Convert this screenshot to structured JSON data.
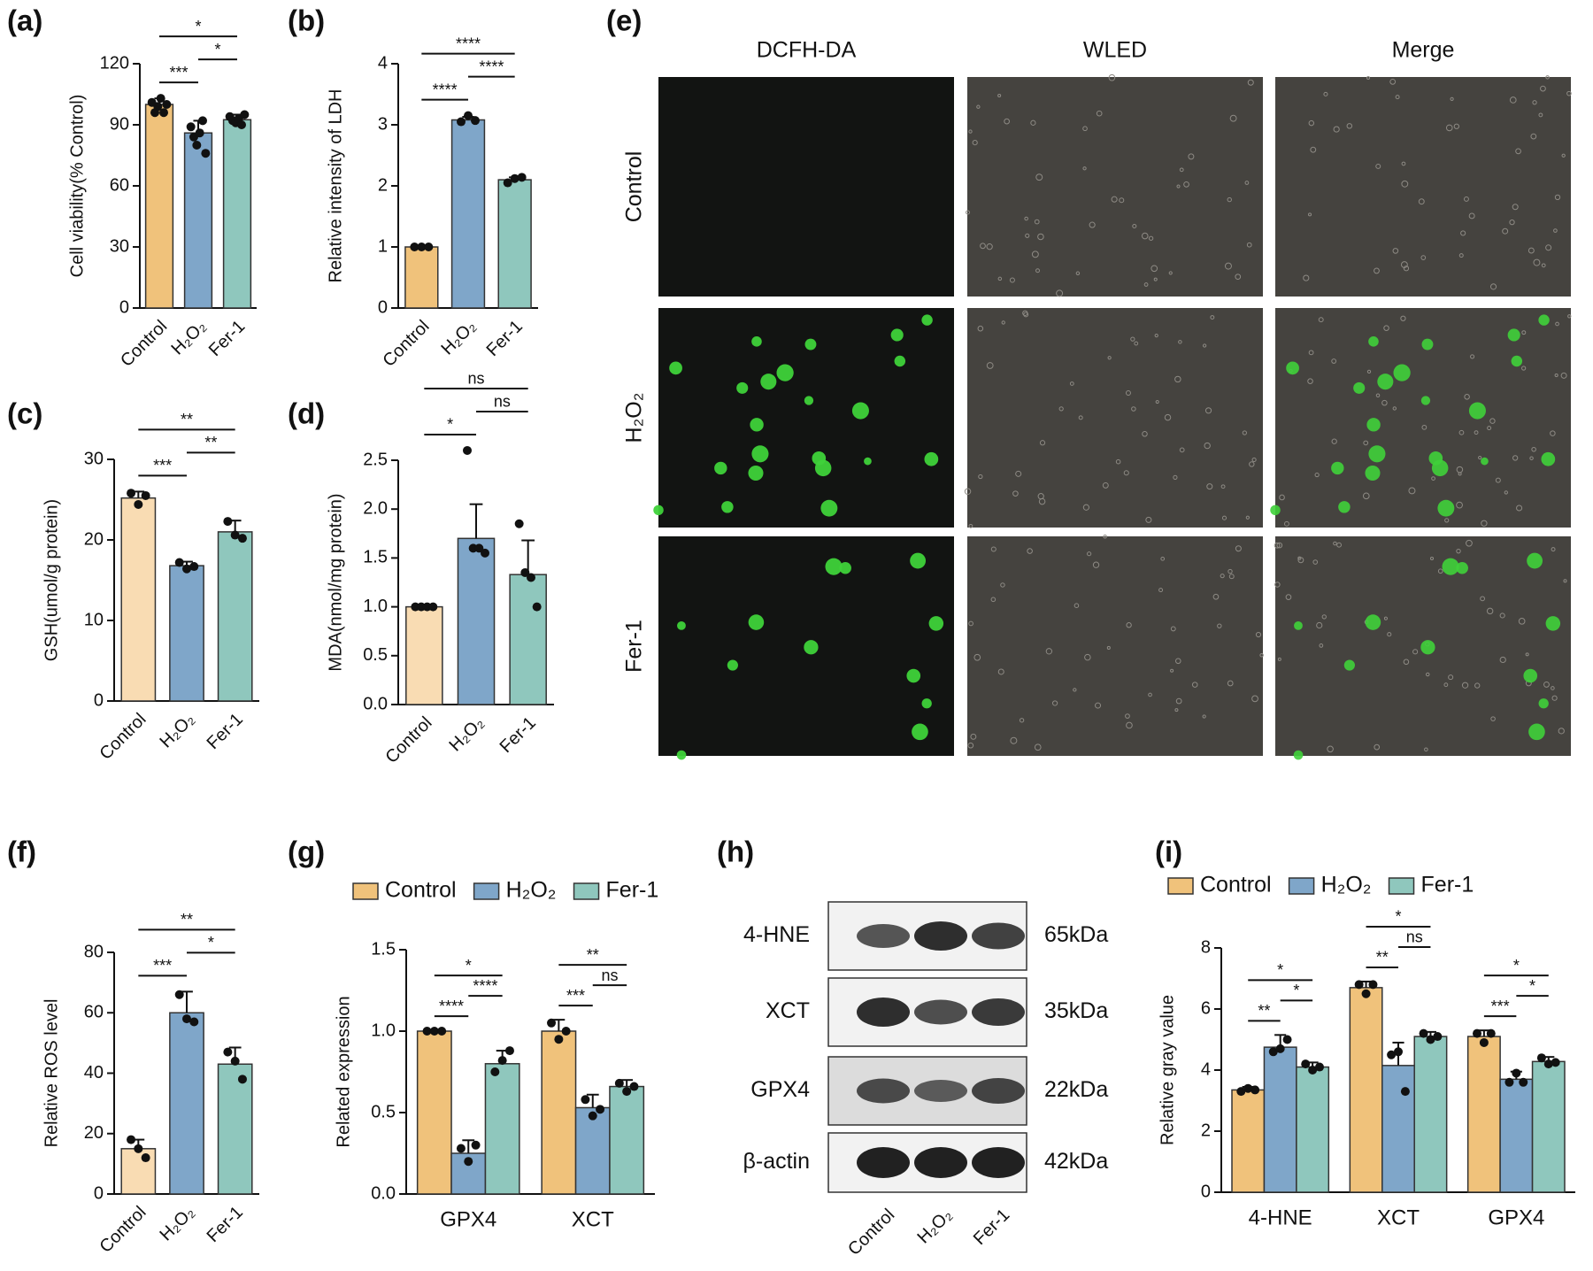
{
  "chart_data": [
    {
      "type": "bar",
      "label": "(a)",
      "ylabel": "Cell viability(% Control)",
      "categories": [
        "Control",
        "H₂O₂",
        "Fer-1"
      ],
      "values": [
        100,
        86,
        92.5
      ],
      "errors": [
        3,
        6,
        2.5
      ],
      "points": [
        [
          101,
          96,
          99,
          103,
          96,
          100
        ],
        [
          89,
          84,
          80,
          86,
          92,
          76
        ],
        [
          94,
          92,
          91,
          93,
          90,
          95
        ]
      ],
      "colors": [
        "#f0c27b",
        "#7fa6c9",
        "#8fc7bd"
      ],
      "ylim": [
        0,
        120
      ],
      "yticks": [
        0,
        30,
        60,
        90,
        120
      ],
      "significance": [
        {
          "between": [
            "Control",
            "H₂O₂"
          ],
          "label": "***"
        },
        {
          "between": [
            "H₂O₂",
            "Fer-1"
          ],
          "label": "*"
        },
        {
          "between": [
            "Control",
            "Fer-1"
          ],
          "label": "*"
        }
      ]
    },
    {
      "type": "bar",
      "label": "(b)",
      "ylabel": "Relative intensity of LDH",
      "categories": [
        "Control",
        "H₂O₂",
        "Fer-1"
      ],
      "values": [
        1,
        3.08,
        2.1
      ],
      "errors": [
        0.01,
        0.05,
        0.04
      ],
      "points": [
        [
          1,
          1,
          1
        ],
        [
          3.05,
          3.15,
          3.07
        ],
        [
          2.05,
          2.12,
          2.14
        ]
      ],
      "colors": [
        "#f0c27b",
        "#7fa6c9",
        "#8fc7bd"
      ],
      "ylim": [
        0,
        4
      ],
      "yticks": [
        0,
        1,
        2,
        3,
        4
      ],
      "significance": [
        {
          "between": [
            "Control",
            "H₂O₂"
          ],
          "label": "****"
        },
        {
          "between": [
            "H₂O₂",
            "Fer-1"
          ],
          "label": "****"
        },
        {
          "between": [
            "Control",
            "Fer-1"
          ],
          "label": "****"
        }
      ]
    },
    {
      "type": "bar",
      "label": "(c)",
      "ylabel": "GSH(umol/g protein)",
      "categories": [
        "Control",
        "H₂O₂",
        "Fer-1"
      ],
      "values": [
        25.2,
        16.8,
        21
      ],
      "errors": [
        0.8,
        0.5,
        1.4
      ],
      "points": [
        [
          25.8,
          24.4,
          25.5
        ],
        [
          17.2,
          16.4,
          16.7
        ],
        [
          22.3,
          20.6,
          20.2
        ]
      ],
      "colors": [
        "#f9dcb3",
        "#7fa6c9",
        "#8fc7bd"
      ],
      "ylim": [
        0,
        30
      ],
      "yticks": [
        0,
        10,
        20,
        30
      ],
      "significance": [
        {
          "between": [
            "Control",
            "H₂O₂"
          ],
          "label": "***"
        },
        {
          "between": [
            "H₂O₂",
            "Fer-1"
          ],
          "label": "**"
        },
        {
          "between": [
            "Control",
            "Fer-1"
          ],
          "label": "**"
        }
      ]
    },
    {
      "type": "bar",
      "label": "(d)",
      "ylabel": "MDA(nmol/mg protein)",
      "categories": [
        "Control",
        "H₂O₂",
        "Fer-1"
      ],
      "values": [
        1,
        1.7,
        1.33
      ],
      "errors": [
        0.01,
        0.35,
        0.35
      ],
      "points": [
        [
          1,
          1,
          1,
          1
        ],
        [
          2.6,
          1.6,
          1.6,
          1.55
        ],
        [
          1.85,
          1.35,
          1.3,
          1
        ]
      ],
      "colors": [
        "#f9dcb3",
        "#7fa6c9",
        "#8fc7bd"
      ],
      "ylim": [
        0,
        2.5
      ],
      "yticks": [
        {
          "value": 0,
          "label": "0.0"
        },
        0.5,
        {
          "value": 1,
          "label": "1.0"
        },
        1.5,
        {
          "value": 2,
          "label": "2.0"
        },
        2.5
      ],
      "significance": [
        {
          "between": [
            "Control",
            "H₂O₂"
          ],
          "label": "*"
        },
        {
          "between": [
            "H₂O₂",
            "Fer-1"
          ],
          "label": "ns"
        },
        {
          "between": [
            "Control",
            "Fer-1"
          ],
          "label": "ns"
        }
      ]
    },
    {
      "type": "bar",
      "label": "(f)",
      "ylabel": "Relative ROS level",
      "categories": [
        "Control",
        "H₂O₂",
        "Fer-1"
      ],
      "values": [
        15,
        60,
        43
      ],
      "errors": [
        3,
        7,
        5.5
      ],
      "points": [
        [
          18,
          15,
          12
        ],
        [
          66,
          58,
          57
        ],
        [
          47,
          44,
          38
        ]
      ],
      "colors": [
        "#f9dcb3",
        "#7fa6c9",
        "#8fc7bd"
      ],
      "ylim": [
        0,
        80
      ],
      "yticks": [
        0,
        20,
        40,
        60,
        80
      ],
      "significance": [
        {
          "between": [
            "Control",
            "H₂O₂"
          ],
          "label": "***"
        },
        {
          "between": [
            "H₂O₂",
            "Fer-1"
          ],
          "label": "*"
        },
        {
          "between": [
            "Control",
            "Fer-1"
          ],
          "label": "**"
        }
      ]
    },
    {
      "type": "grouped_bar",
      "label": "(g)",
      "ylabel": "Related expression",
      "categories": [
        "GPX4",
        "XCT"
      ],
      "series": [
        {
          "name": "Control",
          "color": "#f0c27b",
          "values": [
            1,
            1
          ],
          "errors": [
            0.005,
            0.07
          ],
          "points": [
            [
              1,
              1,
              1
            ],
            [
              1.05,
              0.95,
              1
            ]
          ]
        },
        {
          "name": "H₂O₂",
          "color": "#7fa6c9",
          "values": [
            0.25,
            0.53
          ],
          "errors": [
            0.08,
            0.08
          ],
          "points": [
            [
              0.28,
              0.2,
              0.3
            ],
            [
              0.58,
              0.48,
              0.52
            ]
          ]
        },
        {
          "name": "Fer-1",
          "color": "#8fc7bd",
          "values": [
            0.8,
            0.66
          ],
          "errors": [
            0.08,
            0.04
          ],
          "points": [
            [
              0.75,
              0.82,
              0.88
            ],
            [
              0.68,
              0.63,
              0.66
            ]
          ]
        }
      ],
      "ylim": [
        0,
        1.5
      ],
      "yticks": [
        {
          "value": 0,
          "label": "0.0"
        },
        0.5,
        {
          "value": 1,
          "label": "1.0"
        },
        1.5
      ],
      "legend": "top",
      "significance": [
        {
          "category": "GPX4",
          "between": [
            "Control",
            "H₂O₂"
          ],
          "label": "****"
        },
        {
          "category": "GPX4",
          "between": [
            "H₂O₂",
            "Fer-1"
          ],
          "label": "****"
        },
        {
          "category": "GPX4",
          "between": [
            "Control",
            "Fer-1"
          ],
          "label": "*"
        },
        {
          "category": "XCT",
          "between": [
            "Control",
            "H₂O₂"
          ],
          "label": "***"
        },
        {
          "category": "XCT",
          "between": [
            "H₂O₂",
            "Fer-1"
          ],
          "label": "ns"
        },
        {
          "category": "XCT",
          "between": [
            "Control",
            "Fer-1"
          ],
          "label": "**"
        }
      ]
    },
    {
      "type": "grouped_bar",
      "label": "(i)",
      "ylabel": "Relative gray value",
      "categories": [
        "4-HNE",
        "XCT",
        "GPX4"
      ],
      "series": [
        {
          "name": "Control",
          "color": "#f0c27b",
          "values": [
            3.35,
            6.7,
            5.1
          ],
          "errors": [
            0.1,
            0.2,
            0.2
          ],
          "points": [
            [
              3.3,
              3.4,
              3.35
            ],
            [
              6.8,
              6.5,
              6.8
            ],
            [
              5.2,
              4.9,
              5.2
            ]
          ]
        },
        {
          "name": "H₂O₂",
          "color": "#7fa6c9",
          "values": [
            4.75,
            4.15,
            3.7
          ],
          "errors": [
            0.4,
            0.75,
            0.25
          ],
          "points": [
            [
              4.6,
              4.7,
              5
            ],
            [
              4.5,
              4.6,
              3.3
            ],
            [
              3.6,
              3.9,
              3.6
            ]
          ]
        },
        {
          "name": "Fer-1",
          "color": "#8fc7bd",
          "values": [
            4.1,
            5.1,
            4.28
          ],
          "errors": [
            0.15,
            0.15,
            0.15
          ],
          "points": [
            [
              4.2,
              4,
              4.1
            ],
            [
              5.2,
              5,
              5.1
            ],
            [
              4.4,
              4.2,
              4.25
            ]
          ]
        }
      ],
      "ylim": [
        0,
        8
      ],
      "yticks": [
        0,
        2,
        4,
        6,
        8
      ],
      "legend": "top",
      "significance": [
        {
          "category": "4-HNE",
          "between": [
            "Control",
            "H₂O₂"
          ],
          "label": "**"
        },
        {
          "category": "4-HNE",
          "between": [
            "H₂O₂",
            "Fer-1"
          ],
          "label": "*"
        },
        {
          "category": "4-HNE",
          "between": [
            "Control",
            "Fer-1"
          ],
          "label": "*"
        },
        {
          "category": "XCT",
          "between": [
            "Control",
            "H₂O₂"
          ],
          "label": "**"
        },
        {
          "category": "XCT",
          "between": [
            "H₂O₂",
            "Fer-1"
          ],
          "label": "ns"
        },
        {
          "category": "XCT",
          "between": [
            "Control",
            "Fer-1"
          ],
          "label": "*"
        },
        {
          "category": "GPX4",
          "between": [
            "Control",
            "H₂O₂"
          ],
          "label": "***"
        },
        {
          "category": "GPX4",
          "between": [
            "H₂O₂",
            "Fer-1"
          ],
          "label": "*"
        },
        {
          "category": "GPX4",
          "between": [
            "Control",
            "Fer-1"
          ],
          "label": "*"
        }
      ]
    }
  ],
  "image_panel": {
    "label": "(e)",
    "columns": [
      "DCFH-DA",
      "WLED",
      "Merge"
    ],
    "rows": [
      "Control",
      "H₂O₂",
      "Fer-1"
    ]
  },
  "blot_panel": {
    "label": "(h)",
    "proteins": [
      "4-HNE",
      "XCT",
      "GPX4",
      "β-actin"
    ],
    "sizes": [
      "65kDa",
      "35kDa",
      "22kDa",
      "42kDa"
    ],
    "lanes": [
      "Control",
      "H₂O₂",
      "Fer-1"
    ]
  }
}
